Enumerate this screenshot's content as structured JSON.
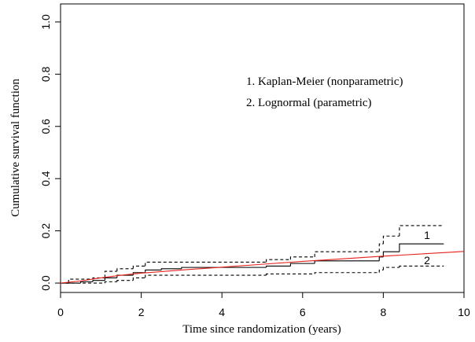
{
  "chart_data": {
    "type": "line",
    "x_label": "Time since randomization (years)",
    "y_label": "Cumulative survival function",
    "annotations": [
      "1. Kaplan-Meier (nonparametric)",
      "2.  Lognormal (parametric)",
      "1",
      "2"
    ],
    "xlim": [
      0,
      10
    ],
    "ylim": [
      -0.036,
      1.069
    ],
    "xticks": [
      0,
      2,
      4,
      6,
      8,
      10
    ],
    "yticks": [
      {
        "value": 0,
        "label": "0.0"
      },
      {
        "value": 0.2,
        "label": "0.2"
      },
      {
        "value": 0.4,
        "label": "0.4"
      },
      {
        "value": 0.6,
        "label": "0.6"
      },
      {
        "value": 0.8,
        "label": "0.8"
      },
      {
        "value": 1,
        "label": "1.0"
      }
    ],
    "series": [
      {
        "color": "#000000",
        "step": true,
        "dash": false,
        "x": [
          0,
          0.5,
          0.8,
          1.1,
          1.4,
          1.8,
          2.1,
          2.5,
          3.0,
          5.1,
          5.7,
          6.3,
          7.9,
          8.0,
          8.4,
          9.5
        ],
        "values": [
          0,
          0.005,
          0.01,
          0.02,
          0.03,
          0.04,
          0.05,
          0.055,
          0.06,
          0.065,
          0.075,
          0.085,
          0.1,
          0.12,
          0.15,
          0.15
        ]
      },
      {
        "color": "#000000",
        "step": true,
        "dash": true,
        "x": [
          0,
          0.2,
          0.8,
          1.1,
          1.4,
          1.8,
          2.1,
          5.1,
          5.7,
          6.3,
          7.9,
          8.0,
          8.4,
          9.5
        ],
        "values": [
          0,
          0.015,
          0.02,
          0.045,
          0.055,
          0.065,
          0.08,
          0.09,
          0.1,
          0.12,
          0.15,
          0.18,
          0.22,
          0.22
        ]
      },
      {
        "color": "#000000",
        "step": true,
        "dash": true,
        "x": [
          0,
          1.1,
          1.4,
          1.8,
          2.1,
          5.1,
          6.3,
          7.9,
          8.0,
          8.4,
          9.5
        ],
        "values": [
          0,
          0.005,
          0.01,
          0.02,
          0.03,
          0.035,
          0.04,
          0.05,
          0.06,
          0.065,
          0.065
        ]
      },
      {
        "color": "#e8201c",
        "step": false,
        "dash": false,
        "x": [
          0,
          0.5,
          1,
          1.5,
          2,
          3,
          4,
          5,
          6,
          7,
          8,
          9,
          10
        ],
        "values": [
          0,
          0.008,
          0.02,
          0.03,
          0.038,
          0.05,
          0.061,
          0.072,
          0.083,
          0.093,
          0.103,
          0.112,
          0.121
        ]
      }
    ]
  }
}
